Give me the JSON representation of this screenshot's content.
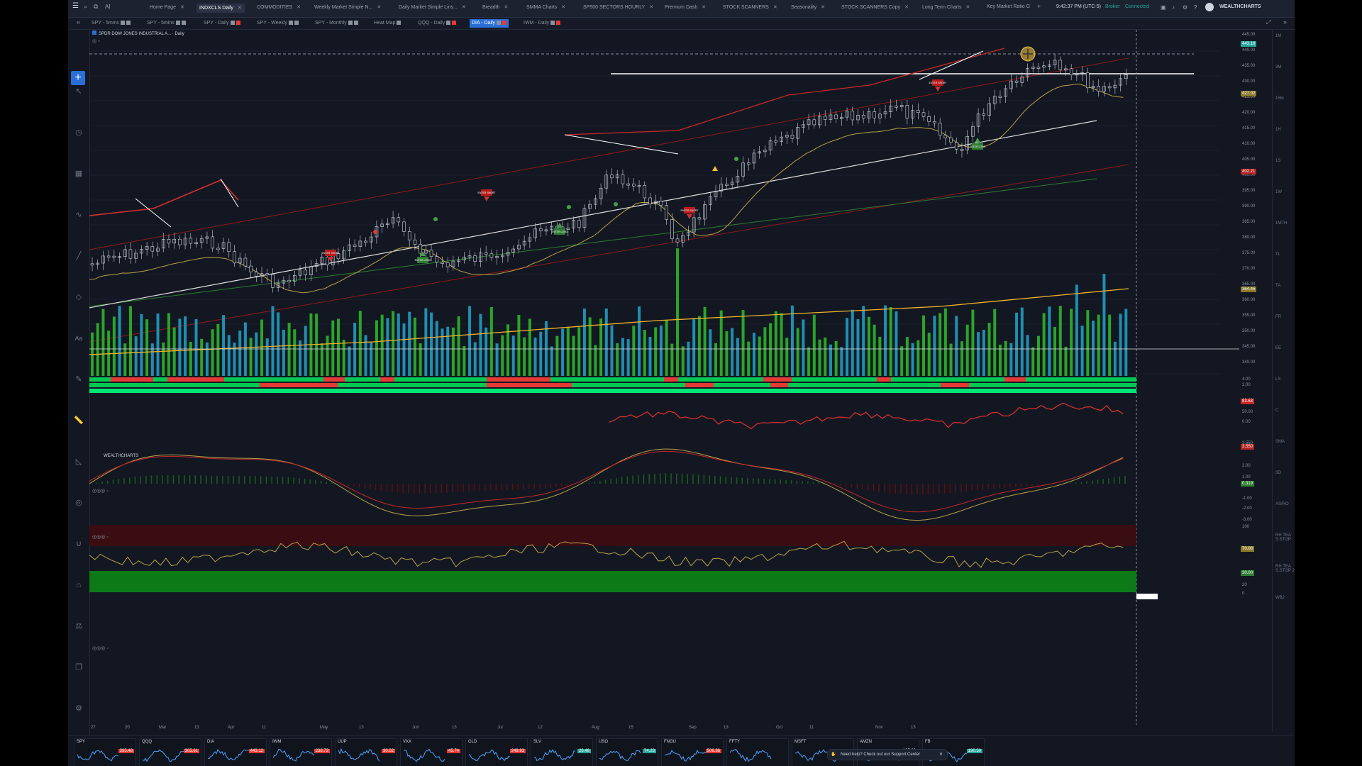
{
  "topbar": {
    "tabs": [
      {
        "label": "Home Page",
        "active": false
      },
      {
        "label": "INDXCLS Daily",
        "active": true
      },
      {
        "label": "COMMODITIES",
        "active": false
      },
      {
        "label": "Weekly Market Simple N...",
        "active": false
      },
      {
        "label": "Daily Market Simple Lins...",
        "active": false
      },
      {
        "label": "Breadth",
        "active": false
      },
      {
        "label": "SMMA Charts",
        "active": false
      },
      {
        "label": "SP500 SECTORS HOURLY",
        "active": false
      },
      {
        "label": "Premium Dash",
        "active": false
      },
      {
        "label": "STOCK SCANNERS",
        "active": false
      },
      {
        "label": "Seasonality",
        "active": false
      },
      {
        "label": "STOCK SCANNERS Copy",
        "active": false
      },
      {
        "label": "Long Term Charts",
        "active": false
      },
      {
        "label": "Key Market Ratio G",
        "active": false
      }
    ],
    "clock": "9:42:37 PM (UTC-5)",
    "broker": "Broker",
    "connection": "Connected",
    "brand": "WEALTHCHARTS"
  },
  "subtabs": [
    {
      "label": "SPY - 5mins",
      "active": false
    },
    {
      "label": "SPY - 5mins",
      "active": false
    },
    {
      "label": "SPY - Daily",
      "active": false
    },
    {
      "label": "SPY - Weekly",
      "active": false
    },
    {
      "label": "SPY - Monthly",
      "active": false
    },
    {
      "label": "Heat Map",
      "active": false
    },
    {
      "label": "QQQ - Daily",
      "active": false
    },
    {
      "label": "DIA - Daily",
      "active": true
    },
    {
      "label": "IWM - Daily",
      "active": false
    }
  ],
  "chart": {
    "legend": "SPDR DOW JONES INDUSTRIAL A... · Daily",
    "price_labels": [
      "445.00",
      "440.00",
      "435.00",
      "430.00",
      "425.00",
      "420.00",
      "415.00",
      "410.00",
      "405.00",
      "400.00",
      "395.00",
      "390.00",
      "385.00",
      "380.00",
      "375.00",
      "370.00",
      "365.00",
      "360.00",
      "355.00",
      "350.00",
      "345.00",
      "340.00"
    ],
    "price_badges": [
      {
        "value": "443.16",
        "color": "#26a69a"
      },
      {
        "value": "427.02",
        "color": "#8a7a2a"
      },
      {
        "value": "402.21",
        "color": "#b22222"
      },
      {
        "value": "364.45",
        "color": "#8a7a2a"
      }
    ],
    "signals": [
      "ENTER SHORT",
      "ENTER LONG"
    ],
    "volume_label": "WEALTHCHARTS",
    "indicator_labels": [
      "4.00",
      "2.00",
      "83.63",
      "50.00",
      "0.00",
      "3.550",
      "3.000",
      "2.00",
      "1.00",
      "0.319",
      "-1.00",
      "-2.00",
      "-3.00",
      "100",
      "70.00",
      "30.00",
      "20",
      "0"
    ],
    "ind_badges": [
      {
        "value": "83.63",
        "color": "#c62828"
      },
      {
        "value": "3.550",
        "color": "#b22222"
      },
      {
        "value": "0.319",
        "color": "#2e7d32"
      },
      {
        "value": "70.00",
        "color": "#8a7a2a"
      },
      {
        "value": "30.00",
        "color": "#2e7d32"
      }
    ]
  },
  "xaxis": [
    "27",
    "20",
    "Mar",
    "13",
    "Apr",
    "11",
    "May",
    "13",
    "Jun",
    "13",
    "Jul",
    "12",
    "Aug",
    "15",
    "Sep",
    "13",
    "Oct",
    "11",
    "Nov",
    "13"
  ],
  "right_panel": [
    "1M",
    "3M",
    "15M",
    "1H",
    "1S",
    "1W",
    "1MTH",
    "TL",
    "TA",
    "FR",
    "EE",
    "LS",
    "C",
    "SMA",
    "SD",
    "AS/RO",
    "RH TEA S.STOP",
    "RH TEA S.STOP 2",
    "WB2"
  ],
  "minicharts": [
    {
      "name": "SPY",
      "value": "395.48",
      "color": "#e53935"
    },
    {
      "name": "QQQ",
      "value": "305.61",
      "color": "#e53935"
    },
    {
      "name": "DIA",
      "value": "443.12",
      "color": "#e53935"
    },
    {
      "name": "IWM",
      "value": "238.73",
      "color": "#e53935"
    },
    {
      "name": "UUP",
      "value": "30.02",
      "color": "#e53935"
    },
    {
      "name": "VXX",
      "value": "45.74",
      "color": "#e53935"
    },
    {
      "name": "GLD",
      "value": "249.83",
      "color": "#e53935"
    },
    {
      "name": "SLV",
      "value": "26.46",
      "color": "#26a69a"
    },
    {
      "name": "USO",
      "value": "74.23",
      "color": "#26a69a"
    },
    {
      "name": "FNGU",
      "value": "506.36",
      "color": "#e53935"
    },
    {
      "name": "FFTY",
      "value": "",
      "color": "#26a69a"
    },
    {
      "name": "MSFT",
      "value": "",
      "color": "#e53935"
    },
    {
      "name": "AMZN",
      "value": "197.00",
      "color": "#e53935"
    },
    {
      "name": "FB",
      "value": "190.50",
      "color": "#26a69a"
    }
  ],
  "help": {
    "text": "Need help? Check out our Support Center"
  }
}
